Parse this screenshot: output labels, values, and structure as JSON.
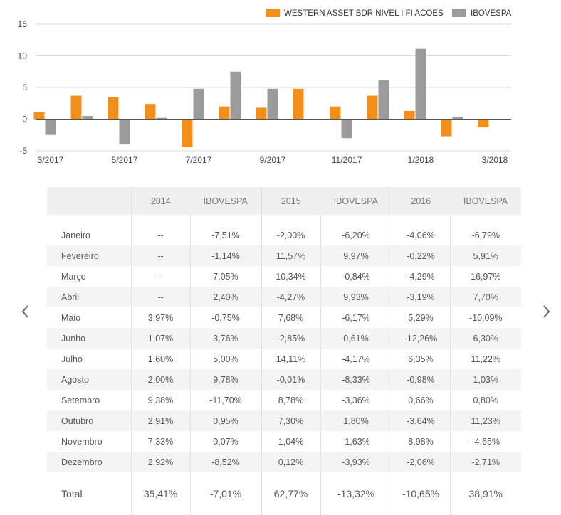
{
  "colors": {
    "fund": "#f18e1c",
    "index": "#9b9b9b",
    "grid": "#d8d8d8",
    "zero_line": "#555555",
    "header_bg": "#f0f0f0",
    "row_alt_bg": "#f4f4f4"
  },
  "chart_data": {
    "type": "bar",
    "title": "",
    "xlabel": "",
    "ylabel": "",
    "ylim": [
      -5,
      15
    ],
    "yticks": [
      -5,
      0,
      5,
      10,
      15
    ],
    "grid": true,
    "legend_position": "top-right",
    "categories": [
      "3/2017",
      "4/2017",
      "5/2017",
      "6/2017",
      "7/2017",
      "8/2017",
      "9/2017",
      "10/2017",
      "11/2017",
      "12/2017",
      "1/2018",
      "2/2018",
      "3/2018"
    ],
    "xtick_labels": [
      "3/2017",
      "5/2017",
      "7/2017",
      "9/2017",
      "11/2017",
      "1/2018",
      "3/2018"
    ],
    "series": [
      {
        "name": "WESTERN ASSET BDR NIVEL I FI ACOES",
        "color": "#f18e1c",
        "values": [
          1.1,
          3.7,
          3.5,
          2.4,
          -4.4,
          2.0,
          1.8,
          4.8,
          2.0,
          3.7,
          1.3,
          -2.7,
          -1.3
        ]
      },
      {
        "name": "IBOVESPA",
        "color": "#9b9b9b",
        "values": [
          -2.5,
          0.5,
          -4.0,
          0.2,
          4.8,
          7.5,
          4.8,
          null,
          -3.0,
          6.2,
          11.1,
          0.4,
          null
        ]
      }
    ]
  },
  "table": {
    "headers": [
      "",
      "2014",
      "IBOVESPA",
      "2015",
      "IBOVESPA",
      "2016",
      "IBOVESPA"
    ],
    "rows": [
      {
        "month": "Janeiro",
        "values": [
          "--",
          "-7,51%",
          "-2,00%",
          "-6,20%",
          "-4,06%",
          "-6,79%"
        ]
      },
      {
        "month": "Fevereiro",
        "values": [
          "--",
          "-1,14%",
          "11,57%",
          "9,97%",
          "-0,22%",
          "5,91%"
        ]
      },
      {
        "month": "Março",
        "values": [
          "--",
          "7,05%",
          "10,34%",
          "-0,84%",
          "-4,29%",
          "16,97%"
        ]
      },
      {
        "month": "Abril",
        "values": [
          "--",
          "2,40%",
          "-4,27%",
          "9,93%",
          "-3,19%",
          "7,70%"
        ]
      },
      {
        "month": "Maio",
        "values": [
          "3,97%",
          "-0,75%",
          "7,68%",
          "-6,17%",
          "5,29%",
          "-10,09%"
        ]
      },
      {
        "month": "Junho",
        "values": [
          "1,07%",
          "3,76%",
          "-2,85%",
          "0,61%",
          "-12,26%",
          "6,30%"
        ]
      },
      {
        "month": "Julho",
        "values": [
          "1,60%",
          "5,00%",
          "14,11%",
          "-4,17%",
          "6,35%",
          "11,22%"
        ]
      },
      {
        "month": "Agosto",
        "values": [
          "2,00%",
          "9,78%",
          "-0,01%",
          "-8,33%",
          "-0,98%",
          "1,03%"
        ]
      },
      {
        "month": "Setembro",
        "values": [
          "9,38%",
          "-11,70%",
          "8,78%",
          "-3,36%",
          "0,66%",
          "0,80%"
        ]
      },
      {
        "month": "Outubro",
        "values": [
          "2,91%",
          "0,95%",
          "7,30%",
          "1,80%",
          "-3,64%",
          "11,23%"
        ]
      },
      {
        "month": "Novembro",
        "values": [
          "7,33%",
          "0,07%",
          "1,04%",
          "-1,63%",
          "8,98%",
          "-4,65%"
        ]
      },
      {
        "month": "Dezembro",
        "values": [
          "2,92%",
          "-8,52%",
          "0,12%",
          "-3,93%",
          "-2,06%",
          "-2,71%"
        ]
      }
    ],
    "total": {
      "label": "Total",
      "values": [
        "35,41%",
        "-7,01%",
        "62,77%",
        "-13,32%",
        "-10,65%",
        "38,91%"
      ]
    }
  },
  "nav": {
    "prev_icon": "chevron-left-icon",
    "next_icon": "chevron-right-icon"
  }
}
